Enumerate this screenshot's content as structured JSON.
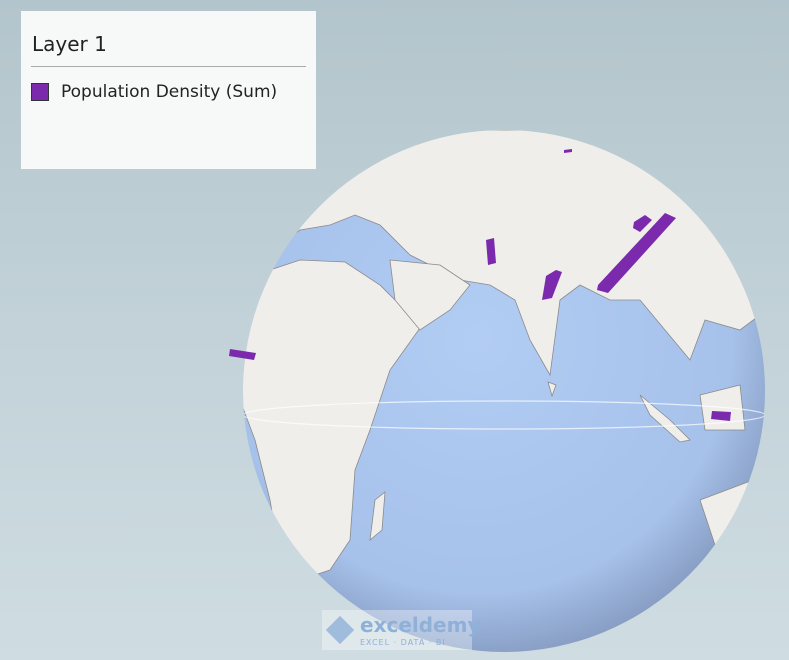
{
  "legend": {
    "title": "Layer 1",
    "items": [
      {
        "label": "Population Density (Sum)",
        "color": "#7b2aae"
      }
    ]
  },
  "map": {
    "projection": "globe",
    "ocean_color": "#a9c4ee",
    "land_color": "#efeeeb",
    "series_color": "#7b2aae"
  },
  "watermark": {
    "name": "exceldemy",
    "tagline": "EXCEL · DATA · BI"
  }
}
